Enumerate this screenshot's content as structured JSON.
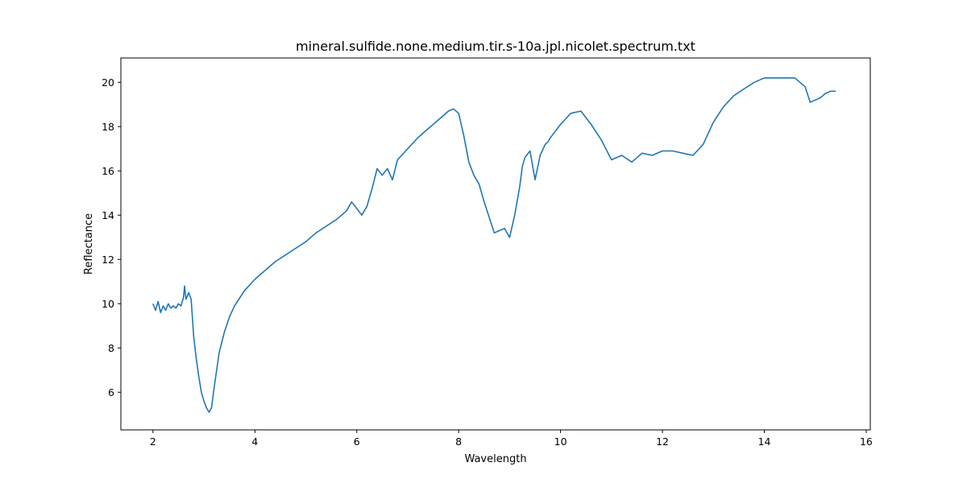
{
  "chart_data": {
    "type": "line",
    "title": "mineral.sulfide.none.medium.tir.s-10a.jpl.nicolet.spectrum.txt",
    "xlabel": "Wavelength",
    "ylabel": "Reflectance",
    "xlim": [
      1.37,
      16.08
    ],
    "ylim": [
      4.3,
      21.1
    ],
    "xticks": [
      2,
      4,
      6,
      8,
      10,
      12,
      14,
      16
    ],
    "yticks": [
      6,
      8,
      10,
      12,
      14,
      16,
      18,
      20
    ],
    "grid": false,
    "line_color": "#1f77b4",
    "series": [
      {
        "x": [
          2.0,
          2.05,
          2.1,
          2.15,
          2.2,
          2.25,
          2.3,
          2.35,
          2.4,
          2.45,
          2.5,
          2.55,
          2.6,
          2.62,
          2.65,
          2.7,
          2.75,
          2.8,
          2.85,
          2.9,
          2.95,
          3.0,
          3.05,
          3.1,
          3.15,
          3.2,
          3.3,
          3.4,
          3.5,
          3.6,
          3.8,
          4.0,
          4.2,
          4.4,
          4.6,
          4.8,
          5.0,
          5.2,
          5.4,
          5.6,
          5.8,
          5.9,
          6.0,
          6.1,
          6.2,
          6.3,
          6.4,
          6.5,
          6.6,
          6.7,
          6.8,
          7.0,
          7.2,
          7.4,
          7.6,
          7.8,
          7.9,
          8.0,
          8.1,
          8.2,
          8.3,
          8.4,
          8.5,
          8.6,
          8.7,
          8.8,
          8.9,
          9.0,
          9.1,
          9.2,
          9.25,
          9.3,
          9.4,
          9.5,
          9.6,
          9.7,
          9.75,
          9.8,
          9.9,
          10.0,
          10.2,
          10.4,
          10.6,
          10.8,
          11.0,
          11.2,
          11.4,
          11.6,
          11.8,
          12.0,
          12.2,
          12.4,
          12.6,
          12.8,
          13.0,
          13.2,
          13.4,
          13.6,
          13.8,
          14.0,
          14.2,
          14.4,
          14.6,
          14.8,
          14.9,
          15.0,
          15.1,
          15.2,
          15.3,
          15.4
        ],
        "y": [
          10.0,
          9.7,
          10.1,
          9.6,
          9.9,
          9.7,
          10.0,
          9.8,
          9.9,
          9.8,
          10.0,
          9.9,
          10.3,
          10.8,
          10.2,
          10.5,
          10.2,
          8.5,
          7.5,
          6.7,
          6.0,
          5.6,
          5.3,
          5.1,
          5.3,
          6.2,
          7.8,
          8.7,
          9.4,
          9.9,
          10.6,
          11.1,
          11.5,
          11.9,
          12.2,
          12.5,
          12.8,
          13.2,
          13.5,
          13.8,
          14.2,
          14.6,
          14.3,
          14.0,
          14.4,
          15.2,
          16.1,
          15.8,
          16.1,
          15.6,
          16.5,
          17.0,
          17.5,
          17.9,
          18.3,
          18.7,
          18.8,
          18.6,
          17.6,
          16.4,
          15.8,
          15.4,
          14.6,
          13.9,
          13.2,
          13.3,
          13.4,
          13.0,
          14.0,
          15.3,
          16.2,
          16.6,
          16.9,
          15.6,
          16.7,
          17.2,
          17.3,
          17.5,
          17.8,
          18.1,
          18.6,
          18.7,
          18.1,
          17.4,
          16.5,
          16.7,
          16.4,
          16.8,
          16.7,
          16.9,
          16.9,
          16.8,
          16.7,
          17.2,
          18.2,
          18.9,
          19.4,
          19.7,
          20.0,
          20.2,
          20.2,
          20.2,
          20.2,
          19.8,
          19.1,
          19.2,
          19.3,
          19.5,
          19.6,
          19.6
        ]
      }
    ]
  }
}
